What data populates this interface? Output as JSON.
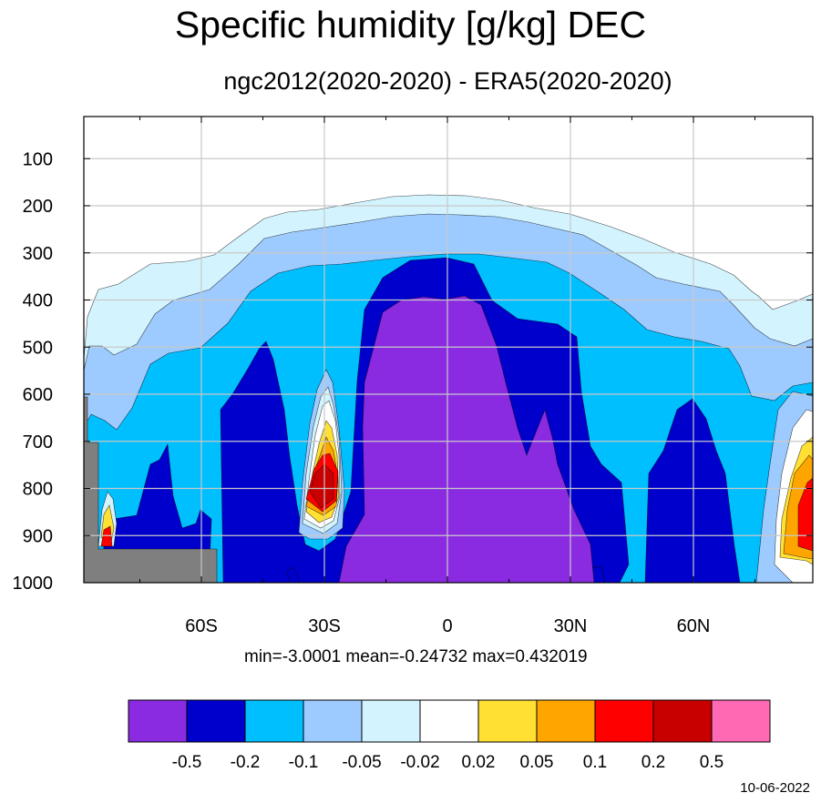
{
  "chart_data": {
    "type": "heatmap",
    "title": "Specific humidity [g/kg] DEC",
    "subtitle": "ngc2012(2020-2020) - ERA5(2020-2020)",
    "x_axis": {
      "ticks": [
        -60,
        -30,
        0,
        30,
        60
      ],
      "tick_labels": [
        "60S",
        "30S",
        "0",
        "30N",
        "60N"
      ],
      "range": [
        -89,
        89
      ]
    },
    "y_axis": {
      "ticks": [
        100,
        200,
        300,
        400,
        500,
        600,
        700,
        800,
        900,
        1000
      ],
      "tick_labels": [
        "100",
        "200",
        "300",
        "400",
        "500",
        "600",
        "700",
        "800",
        "900",
        "1000"
      ],
      "range": [
        1000,
        30
      ],
      "inverted": true
    },
    "grid": true,
    "stats": {
      "min": "-3.0001",
      "mean": "-0.24732",
      "max": "0.432019"
    },
    "stats_text": "min=-3.0001   mean=-0.24732   max=0.432019",
    "colorbar": {
      "levels": [
        "-0.5",
        "-0.2",
        "-0.1",
        "-0.05",
        "-0.02",
        "0.02",
        "0.05",
        "0.1",
        "0.2",
        "0.5"
      ],
      "colors": [
        "#8a2be2",
        "#0000cd",
        "#00bfff",
        "#9ecbff",
        "#d3f4ff",
        "#ffffff",
        "#ffe033",
        "#ffa500",
        "#ff0000",
        "#c80000",
        "#ff69b4"
      ]
    },
    "missing_color": "#7f7f7f",
    "date": "10-06-2022"
  }
}
